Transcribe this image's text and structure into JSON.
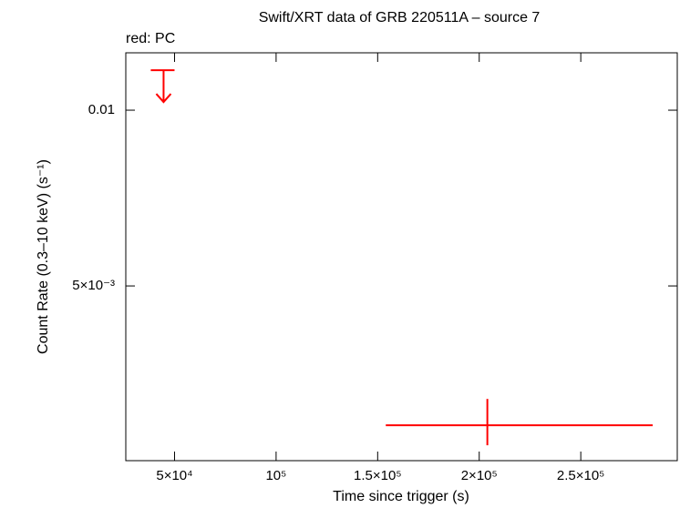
{
  "chart_data": {
    "type": "errorbar",
    "title": "Swift/XRT data of GRB 220511A – source 7",
    "subtitle": "red: PC",
    "xlabel": "Time since trigger (s)",
    "ylabel": "Count Rate (0.3–10 keV) (s⁻¹)",
    "xlim": [
      26000,
      297500
    ],
    "ylim": [
      0.00251,
      0.01254
    ],
    "ylog": true,
    "xticks": [
      {
        "value": 50000,
        "label": "5×10⁴"
      },
      {
        "value": 100000,
        "label": "10⁵"
      },
      {
        "value": 150000,
        "label": "1.5×10⁵"
      },
      {
        "value": 200000,
        "label": "2×10⁵"
      },
      {
        "value": 250000,
        "label": "2.5×10⁵"
      }
    ],
    "yticks": [
      {
        "value": 0.005,
        "label": "5×10⁻³"
      },
      0.01
    ],
    "series": [
      {
        "color": "#ff0000",
        "x": [
          204000
        ],
        "x_minus": [
          50000
        ],
        "x_plus": [
          81400
        ],
        "values": [
          0.002886
        ],
        "y_plus": [
          0.000316
        ],
        "y_minus": [
          0.000219
        ]
      }
    ],
    "upper_limits": {
      "color": "#ff0000",
      "x": [
        44600
      ],
      "x_minus": [
        6300
      ],
      "x_plus": [
        5400
      ],
      "values": [
        0.01171
      ]
    }
  }
}
